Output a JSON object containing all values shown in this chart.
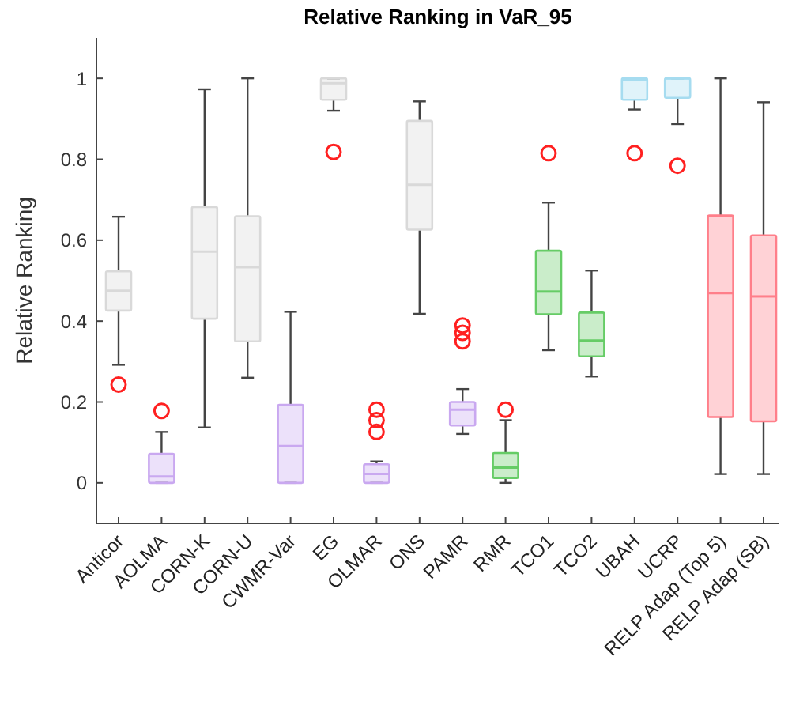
{
  "chart_data": {
    "type": "box",
    "title": "Relative Ranking in VaR_95",
    "ylabel": "Relative Ranking",
    "categories": [
      "Anticor",
      "AOLMA",
      "CORN-K",
      "CORN-U",
      "CWMR-Var",
      "EG",
      "OLMAR",
      "ONS",
      "PAMR",
      "RMR",
      "TCO1",
      "TCO2",
      "UBAH",
      "UCRP",
      "RELP Adap (Top 5)",
      "RELP Adap (SB)"
    ],
    "boxes": [
      {
        "low": 0.292,
        "q1": 0.426,
        "median": 0.475,
        "q3": 0.523,
        "high": 0.658,
        "outliers": [
          0.243
        ]
      },
      {
        "low": 0,
        "q1": 0,
        "median": 0.016,
        "q3": 0.072,
        "high": 0.126,
        "outliers": [
          0.178
        ]
      },
      {
        "low": 0.137,
        "q1": 0.406,
        "median": 0.572,
        "q3": 0.682,
        "high": 0.973
      },
      {
        "low": 0.26,
        "q1": 0.35,
        "median": 0.533,
        "q3": 0.659,
        "high": 1.0
      },
      {
        "low": 0,
        "q1": 0,
        "median": 0.091,
        "q3": 0.193,
        "high": 0.423
      },
      {
        "low": 0.92,
        "q1": 0.947,
        "median": 0.988,
        "q3": 1.0,
        "high": 1.0,
        "outliers": [
          0.818
        ]
      },
      {
        "low": 0,
        "q1": 0,
        "median": 0.022,
        "q3": 0.046,
        "high": 0.053,
        "outliers": [
          0.126,
          0.155,
          0.181
        ]
      },
      {
        "low": 0.418,
        "q1": 0.626,
        "median": 0.737,
        "q3": 0.895,
        "high": 0.943
      },
      {
        "low": 0.121,
        "q1": 0.142,
        "median": 0.181,
        "q3": 0.2,
        "high": 0.232,
        "outliers": [
          0.35,
          0.371,
          0.389
        ]
      },
      {
        "low": 0,
        "q1": 0.012,
        "median": 0.038,
        "q3": 0.074,
        "high": 0.155,
        "outliers": [
          0.181
        ]
      },
      {
        "low": 0.328,
        "q1": 0.417,
        "median": 0.473,
        "q3": 0.574,
        "high": 0.693,
        "outliers": [
          0.815
        ]
      },
      {
        "low": 0.263,
        "q1": 0.313,
        "median": 0.352,
        "q3": 0.421,
        "high": 0.525
      },
      {
        "low": 0.923,
        "q1": 0.947,
        "median": 0.997,
        "q3": 1.0,
        "high": 1.0,
        "outliers": [
          0.815
        ]
      },
      {
        "low": 0.887,
        "q1": 0.952,
        "median": 1.0,
        "q3": 1.0,
        "high": 1.0,
        "outliers": [
          0.784
        ]
      },
      {
        "low": 0.022,
        "q1": 0.163,
        "median": 0.469,
        "q3": 0.661,
        "high": 1.0
      },
      {
        "low": 0.022,
        "q1": 0.152,
        "median": 0.461,
        "q3": 0.612,
        "high": 0.941
      }
    ],
    "colors": [
      "#d9d9d9",
      "#c9a8f0",
      "#d9d9d9",
      "#d9d9d9",
      "#c9a8f0",
      "#d9d9d9",
      "#c9a8f0",
      "#d9d9d9",
      "#c9a8f0",
      "#66cc66",
      "#66cc66",
      "#66cc66",
      "#a6dcf0",
      "#a6dcf0",
      "#ff7f8a",
      "#ff7f8a"
    ],
    "ylim": [
      -0.1,
      1.1
    ],
    "yticks": [
      0,
      0.2,
      0.4,
      0.6,
      0.8,
      1
    ],
    "grid": false
  }
}
